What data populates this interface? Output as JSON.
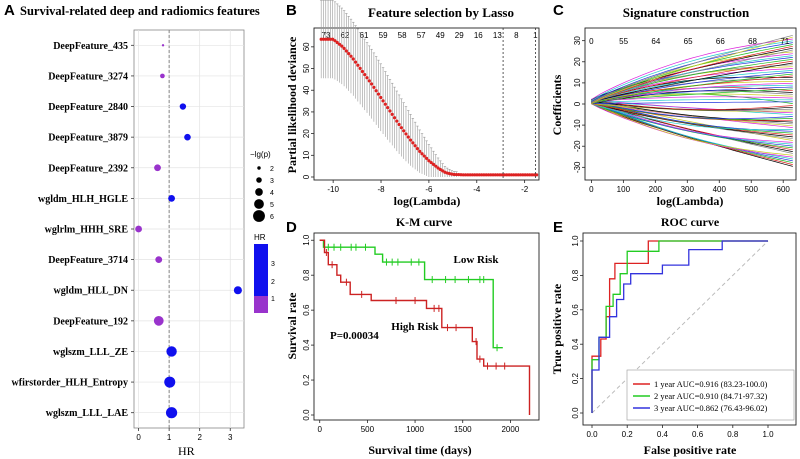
{
  "panels": {
    "A": {
      "letter": "A",
      "title": "Survival-related deep and radiomics features",
      "xlabel": "HR",
      "x_ticks": [
        "0",
        "1",
        "2",
        "3"
      ],
      "xlim": [
        -0.15,
        3.45
      ],
      "ref_line": 1.0,
      "size_legend_title": "−lg(p)",
      "size_legend_values": [
        "2",
        "3",
        "4",
        "5",
        "6"
      ],
      "color_legend_title": "HR",
      "color_legend_ticks": [
        "3",
        "2",
        "1"
      ],
      "colors": {
        "high": "#1010ee",
        "low": "#9933cc"
      }
    },
    "B": {
      "letter": "B",
      "title": "Feature selection by Lasso",
      "xlabel": "log(Lambda)",
      "ylabel": "Partial likelihood deviance",
      "x_ticks": [
        "-10",
        "-8",
        "-6",
        "-4",
        "-2"
      ],
      "y_ticks": [
        "0",
        "10",
        "20",
        "30",
        "40",
        "50",
        "60"
      ],
      "top_ticks": [
        "73",
        "62",
        "61",
        "59",
        "58",
        "57",
        "49",
        "29",
        "16",
        "13",
        "8",
        "1"
      ],
      "xlim": [
        -10.8,
        -1.4
      ],
      "ylim": [
        0,
        65
      ],
      "vlines": [
        -2.9,
        -1.55
      ],
      "colors": {
        "mean": "#dd2222",
        "error": "#999999"
      }
    },
    "C": {
      "letter": "C",
      "title": "Signature construction",
      "xlabel": "log(Lambda)",
      "ylabel": "Coefficients",
      "x_ticks": [
        "0",
        "100",
        "200",
        "300",
        "400",
        "500",
        "600"
      ],
      "y_ticks": [
        "-30",
        "-20",
        "-10",
        "0",
        "10",
        "20",
        "30"
      ],
      "top_ticks": [
        "0",
        "55",
        "64",
        "65",
        "66",
        "68",
        "71"
      ],
      "xlim": [
        -20,
        640
      ],
      "ylim": [
        -36,
        36
      ]
    },
    "D": {
      "letter": "D",
      "title": "K-M curve",
      "xlabel": "Survival time (days)",
      "ylabel": "Survival rate",
      "x_ticks": [
        "0",
        "500",
        "1000",
        "1500",
        "2000"
      ],
      "y_ticks": [
        "0.0",
        "0.2",
        "0.4",
        "0.6",
        "0.8",
        "1.0"
      ],
      "xlim": [
        -60,
        2300
      ],
      "ylim": [
        0,
        1.03
      ],
      "label_low": "Low Risk",
      "label_high": "High Risk",
      "pvalue": "P=0.00034",
      "colors": {
        "low": "#22cc22",
        "high": "#cc2222"
      }
    },
    "E": {
      "letter": "E",
      "title": "ROC curve",
      "xlabel": "False positive rate",
      "ylabel": "True positive rate",
      "x_ticks": [
        "0.0",
        "0.2",
        "0.4",
        "0.6",
        "0.8",
        "1.0"
      ],
      "y_ticks": [
        "0.0",
        "0.2",
        "0.4",
        "0.6",
        "0.8",
        "1.0"
      ],
      "legend": [
        "1 year AUC=0.916 (83.23-100.0)",
        "2 year AUC=0.910 (84.71-97.32)",
        "3 year AUC=0.862 (76.43-96.02)"
      ],
      "colors": [
        "#dd2222",
        "#22cc22",
        "#3333dd"
      ]
    }
  },
  "chart_data": [
    {
      "type": "scatter",
      "panel": "A",
      "title": "Survival-related deep and radiomics features",
      "xlabel": "HR",
      "features": [
        {
          "name": "DeepFeature_435",
          "hr": 0.8,
          "lgp": 1.5
        },
        {
          "name": "DeepFeature_3274",
          "hr": 0.78,
          "lgp": 2.6
        },
        {
          "name": "DeepFeature_2840",
          "hr": 1.45,
          "lgp": 3.4
        },
        {
          "name": "DeepFeature_3879",
          "hr": 1.6,
          "lgp": 3.5
        },
        {
          "name": "DeepFeature_2392",
          "hr": 0.62,
          "lgp": 3.6
        },
        {
          "name": "wgldm_HLH_HGLE",
          "hr": 1.08,
          "lgp": 3.6
        },
        {
          "name": "wglrlm_HHH_SRE",
          "hr": 0.0,
          "lgp": 3.6
        },
        {
          "name": "DeepFeature_3714",
          "hr": 0.66,
          "lgp": 3.6
        },
        {
          "name": "wgldm_HLL_DN",
          "hr": 3.25,
          "lgp": 4.2
        },
        {
          "name": "DeepFeature_192",
          "hr": 0.66,
          "lgp": 5.0
        },
        {
          "name": "wglszm_LLL_ZE",
          "hr": 1.08,
          "lgp": 5.3
        },
        {
          "name": "wfirstorder_HLH_Entropy",
          "hr": 1.02,
          "lgp": 5.6
        },
        {
          "name": "wglszm_LLL_LAE",
          "hr": 1.08,
          "lgp": 5.7
        }
      ]
    },
    {
      "type": "line",
      "panel": "B",
      "title": "Feature selection by Lasso",
      "xlabel": "log(Lambda)",
      "ylabel": "Partial likelihood deviance",
      "x": [
        -10.5,
        -10.0,
        -9.6,
        -9.2,
        -8.8,
        -8.4,
        -8.0,
        -7.6,
        -7.2,
        -6.8,
        -6.4,
        -6.0,
        -5.6,
        -5.3,
        -5.0,
        -4.6,
        -4.0,
        -3.0,
        -2.0,
        -1.5
      ],
      "mean": [
        63.5,
        63.5,
        60.0,
        55.0,
        49.0,
        43.0,
        36.5,
        30.0,
        23.5,
        17.5,
        12.0,
        7.5,
        4.0,
        2.0,
        1.2,
        1.0,
        1.0,
        1.0,
        1.0,
        1.0
      ],
      "error": [
        18,
        18,
        17.5,
        17,
        16.5,
        16,
        15.5,
        14.5,
        13.5,
        12,
        10,
        7.5,
        4.5,
        2.5,
        1.5,
        1,
        1,
        1,
        1,
        1
      ]
    },
    {
      "type": "line",
      "panel": "C",
      "title": "Signature construction",
      "xlabel": "log(Lambda)",
      "ylabel": "Coefficients",
      "x_range": [
        0,
        630
      ],
      "series_count": 72,
      "end_values_range": [
        -30,
        33
      ]
    },
    {
      "type": "line",
      "panel": "D",
      "title": "K-M curve",
      "xlabel": "Survival time (days)",
      "ylabel": "Survival rate",
      "series": [
        {
          "name": "Low Risk",
          "times": [
            0,
            40,
            580,
            660,
            1100,
            1820,
            1920
          ],
          "surv": [
            1.0,
            0.96,
            0.92,
            0.875,
            0.775,
            0.385,
            0.385
          ],
          "censor": [
            90,
            150,
            220,
            330,
            380,
            480,
            700,
            760,
            820,
            960,
            1040,
            1180,
            1320,
            1420,
            1560,
            1680,
            1720,
            1860
          ]
        },
        {
          "name": "High Risk",
          "times": [
            0,
            50,
            90,
            180,
            220,
            320,
            540,
            1120,
            1280,
            1600,
            1650,
            1720,
            2200
          ],
          "surv": [
            1.0,
            0.93,
            0.86,
            0.8,
            0.76,
            0.69,
            0.655,
            0.61,
            0.5,
            0.42,
            0.32,
            0.28,
            0.0
          ],
          "censor": [
            70,
            130,
            280,
            440,
            800,
            1000,
            1200,
            1250,
            1340,
            1430,
            1640,
            1680,
            1760,
            1850,
            1940
          ]
        }
      ],
      "pvalue": "P=0.00034"
    },
    {
      "type": "line",
      "panel": "E",
      "title": "ROC curve",
      "xlabel": "False positive rate",
      "ylabel": "True positive rate",
      "series": [
        {
          "name": "1 year AUC=0.916 (83.23-100.0)",
          "fpr": [
            0,
            0,
            0.05,
            0.05,
            0.08,
            0.08,
            0.1,
            0.1,
            0.13,
            0.13,
            0.32,
            0.32,
            1.0
          ],
          "tpr": [
            0,
            0.33,
            0.33,
            0.43,
            0.43,
            0.56,
            0.56,
            0.78,
            0.78,
            0.87,
            0.87,
            1.0,
            1.0
          ]
        },
        {
          "name": "2 year AUC=0.910 (84.71-97.32)",
          "fpr": [
            0,
            0,
            0.04,
            0.04,
            0.08,
            0.08,
            0.12,
            0.12,
            0.16,
            0.16,
            0.2,
            0.2,
            0.38,
            0.38,
            1.0
          ],
          "tpr": [
            0,
            0.31,
            0.31,
            0.44,
            0.44,
            0.62,
            0.62,
            0.69,
            0.69,
            0.81,
            0.81,
            0.94,
            0.94,
            1.0,
            1.0
          ]
        },
        {
          "name": "3 year AUC=0.862 (76.43-96.02)",
          "fpr": [
            0,
            0,
            0.04,
            0.04,
            0.1,
            0.1,
            0.14,
            0.14,
            0.18,
            0.18,
            0.22,
            0.22,
            0.4,
            0.4,
            0.55,
            0.55,
            0.74,
            0.74,
            1.0
          ],
          "tpr": [
            0,
            0.25,
            0.25,
            0.44,
            0.44,
            0.56,
            0.56,
            0.66,
            0.66,
            0.75,
            0.75,
            0.81,
            0.81,
            0.86,
            0.86,
            0.95,
            0.95,
            1.0,
            1.0
          ]
        }
      ]
    }
  ]
}
